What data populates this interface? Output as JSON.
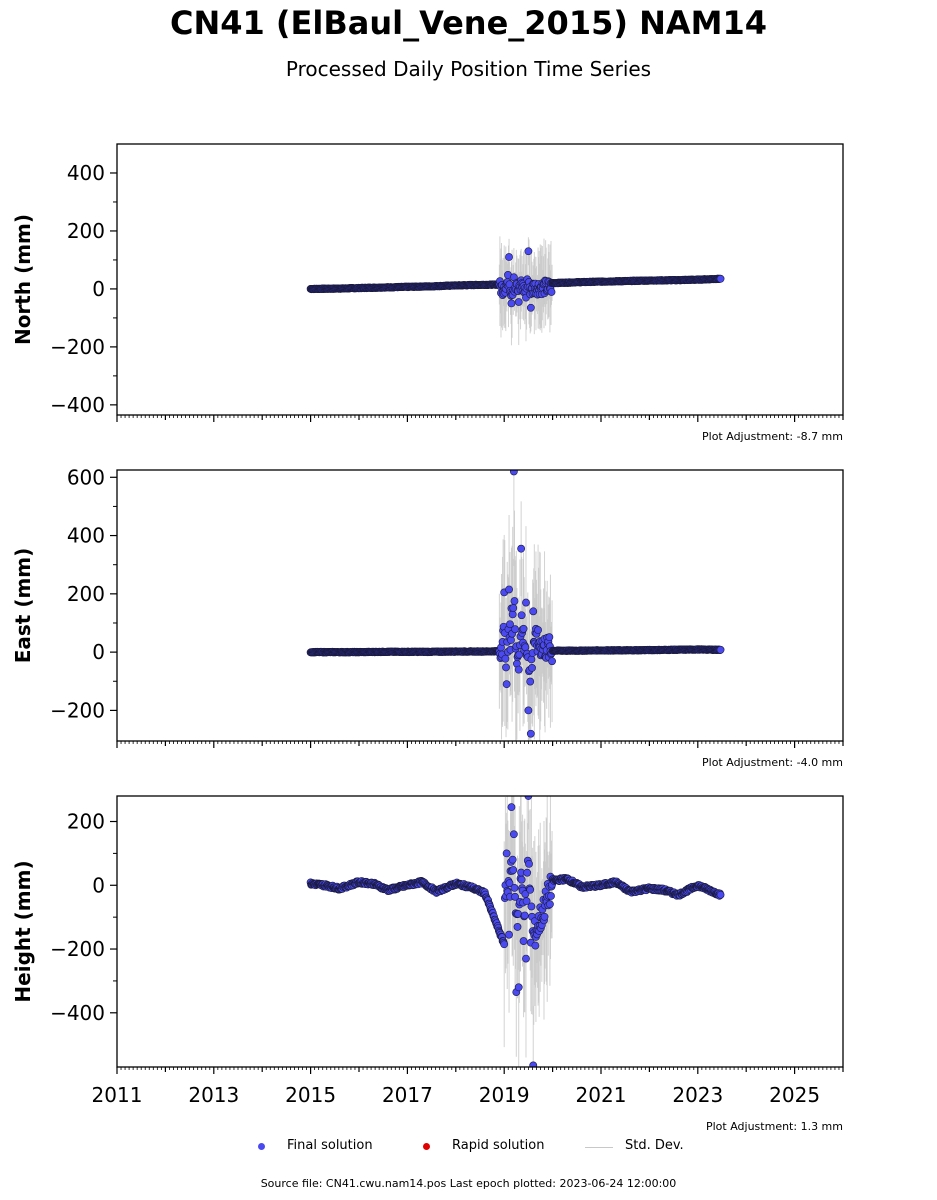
{
  "title": "CN41 (ElBaul_Vene_2015) NAM14",
  "subtitle": "Processed Daily Position Time Series",
  "footer": "Source file: CN41.cwu.nam14.pos  Last epoch plotted: 2023-06-24 12:00:00",
  "legend": {
    "final": "Final solution",
    "rapid": "Rapid solution",
    "std": "Std. Dev."
  },
  "colors": {
    "final": "#4a4af0",
    "rapid": "#e00000",
    "std": "#c8c8c8"
  },
  "chart_data": [
    {
      "type": "scatter",
      "ylabel": "North (mm)",
      "adjustment": "Plot Adjustment: -8.7 mm",
      "xlim": [
        2011,
        2026
      ],
      "ylim": [
        -435,
        500
      ],
      "yticks": [
        -400,
        -200,
        0,
        200,
        400
      ],
      "yticklabels": [
        "−400",
        "−200",
        "0",
        "200",
        "400"
      ],
      "series": [
        {
          "name": "Final solution",
          "x": [
            2015.0,
            2015.5,
            2016.0,
            2016.5,
            2017.0,
            2017.5,
            2018.0,
            2018.5,
            2018.9,
            2019.0,
            2019.1,
            2019.15,
            2019.2,
            2019.25,
            2019.3,
            2019.35,
            2019.4,
            2019.45,
            2019.5,
            2019.55,
            2019.6,
            2020.0,
            2020.5,
            2021.0,
            2021.5,
            2022.0,
            2022.5,
            2023.0,
            2023.47
          ],
          "y": [
            0,
            1,
            3,
            5,
            7,
            9,
            12,
            14,
            15,
            8,
            110,
            -50,
            40,
            20,
            -45,
            30,
            10,
            -30,
            130,
            -65,
            18,
            20,
            23,
            25,
            27,
            29,
            30,
            32,
            35
          ]
        }
      ]
    },
    {
      "type": "scatter",
      "ylabel": "East (mm)",
      "adjustment": "Plot Adjustment: -4.0 mm",
      "xlim": [
        2011,
        2026
      ],
      "ylim": [
        -305,
        625
      ],
      "yticks": [
        -200,
        0,
        200,
        400,
        600
      ],
      "yticklabels": [
        "−200",
        "0",
        "200",
        "400",
        "600"
      ],
      "series": [
        {
          "name": "Final solution",
          "x": [
            2015.0,
            2015.5,
            2016.0,
            2016.5,
            2017.0,
            2017.5,
            2018.0,
            2018.5,
            2018.9,
            2019.0,
            2019.05,
            2019.1,
            2019.15,
            2019.2,
            2019.25,
            2019.3,
            2019.35,
            2019.4,
            2019.45,
            2019.5,
            2019.55,
            2019.6,
            2020.0,
            2020.5,
            2021.0,
            2021.5,
            2022.0,
            2022.5,
            2023.0,
            2023.47
          ],
          "y": [
            0,
            0,
            0,
            1,
            1,
            1,
            2,
            2,
            3,
            205,
            -110,
            215,
            150,
            620,
            20,
            -60,
            355,
            80,
            170,
            -200,
            -280,
            140,
            5,
            5,
            6,
            6,
            7,
            8,
            9,
            8
          ]
        }
      ]
    },
    {
      "type": "scatter",
      "ylabel": "Height (mm)",
      "adjustment": "Plot Adjustment: 1.3 mm",
      "xlim": [
        2011,
        2026
      ],
      "ylim": [
        -570,
        280
      ],
      "yticks": [
        -400,
        -200,
        0,
        200
      ],
      "yticklabels": [
        "−400",
        "−200",
        "0",
        "200"
      ],
      "xticks": [
        2011,
        2013,
        2015,
        2017,
        2019,
        2021,
        2023,
        2025
      ],
      "series": [
        {
          "name": "Final solution",
          "x": [
            2015.0,
            2015.3,
            2015.6,
            2016.0,
            2016.3,
            2016.6,
            2017.0,
            2017.3,
            2017.6,
            2018.0,
            2018.3,
            2018.6,
            2019.0,
            2019.05,
            2019.1,
            2019.15,
            2019.2,
            2019.25,
            2019.3,
            2019.35,
            2019.4,
            2019.45,
            2019.5,
            2019.55,
            2019.6,
            2020.0,
            2020.3,
            2020.6,
            2021.0,
            2021.3,
            2021.6,
            2022.0,
            2022.3,
            2022.6,
            2023.0,
            2023.47
          ],
          "y": [
            5,
            0,
            -10,
            10,
            5,
            -15,
            0,
            10,
            -20,
            5,
            -5,
            -25,
            -185,
            100,
            -155,
            245,
            160,
            -335,
            -320,
            40,
            -175,
            -230,
            280,
            -180,
            -565,
            15,
            20,
            -5,
            0,
            10,
            -20,
            -10,
            -15,
            -30,
            0,
            -30
          ]
        }
      ]
    }
  ]
}
